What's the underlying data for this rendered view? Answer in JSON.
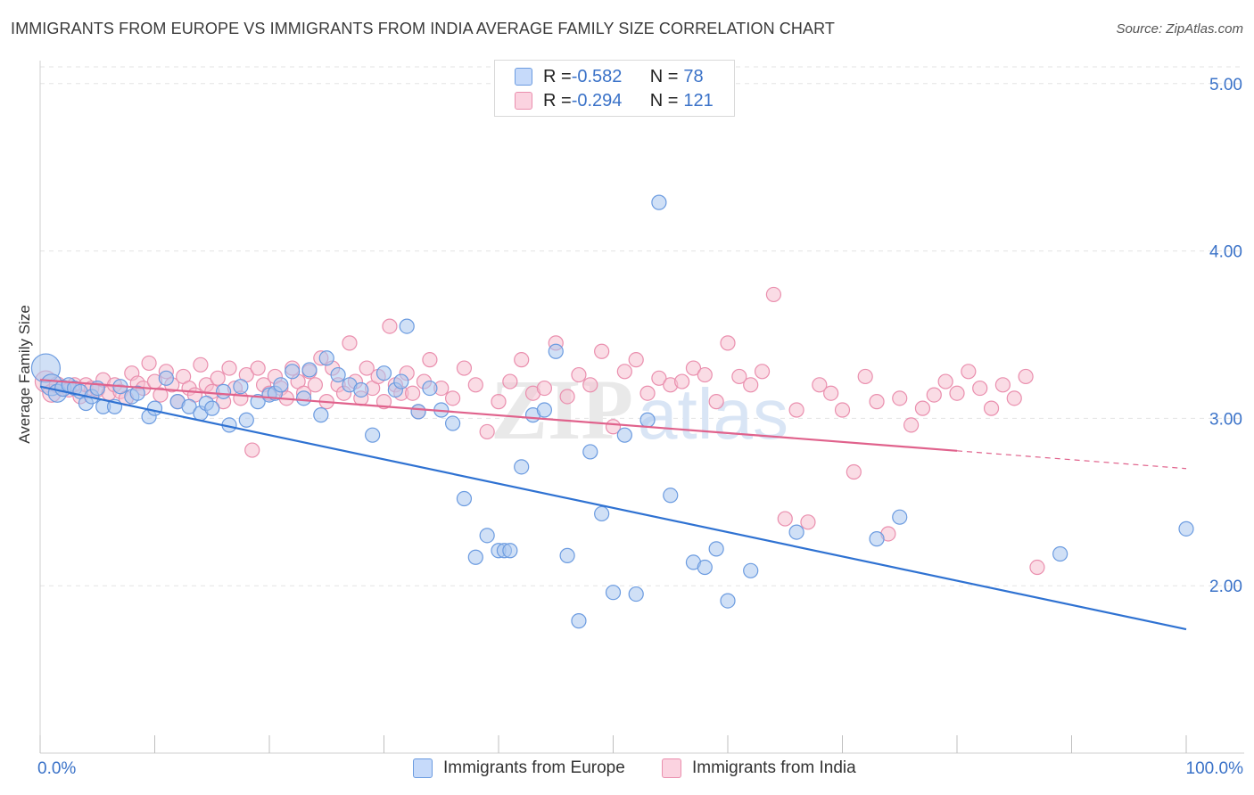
{
  "header": {
    "title": "IMMIGRANTS FROM EUROPE VS IMMIGRANTS FROM INDIA AVERAGE FAMILY SIZE CORRELATION CHART",
    "source": "Source: ZipAtlas.com"
  },
  "legend_top": {
    "europe": {
      "r_label": "R = ",
      "r_value": "-0.582",
      "n_label": "N = ",
      "n_value": "78"
    },
    "india": {
      "r_label": "R = ",
      "r_value": "-0.294",
      "n_label": "N = ",
      "n_value": "121"
    }
  },
  "watermark": {
    "zip": "ZIP",
    "atlas": "atlas"
  },
  "colors": {
    "europe_fill": "#a9c7ef",
    "europe_stroke": "#6b9be0",
    "europe_line": "#2f72d2",
    "india_fill": "#f6bfd0",
    "india_stroke": "#ea8fae",
    "india_line": "#e0628c",
    "axis_text": "#3a72c8",
    "grid": "#e3e3e3"
  },
  "chart_data": {
    "type": "scatter",
    "title": "IMMIGRANTS FROM EUROPE VS IMMIGRANTS FROM INDIA AVERAGE FAMILY SIZE CORRELATION CHART",
    "xlabel": "",
    "ylabel": "Average Family Size",
    "xlim": [
      0,
      100
    ],
    "ylim": [
      1.0,
      5.1
    ],
    "x_tick_labels": [
      "0.0%",
      "100.0%"
    ],
    "y_ticks": [
      2.0,
      3.0,
      4.0,
      5.0
    ],
    "y_tick_labels": [
      "2.00",
      "3.00",
      "4.00",
      "5.00"
    ],
    "grid": true,
    "legend_position": "bottom",
    "series": [
      {
        "name": "Immigrants from Europe",
        "r": -0.582,
        "n": 78,
        "trend": {
          "x": [
            0,
            100
          ],
          "y": [
            3.19,
            1.74
          ],
          "solid_to": 100
        },
        "points": [
          [
            0.5,
            3.3,
            16
          ],
          [
            1.0,
            3.2,
            12
          ],
          [
            1.5,
            3.15,
            10
          ],
          [
            2.0,
            3.18,
            9
          ],
          [
            2.5,
            3.2,
            8
          ],
          [
            3.0,
            3.18,
            8
          ],
          [
            3.5,
            3.16,
            8
          ],
          [
            4.0,
            3.09,
            8
          ],
          [
            4.5,
            3.13,
            8
          ],
          [
            5.0,
            3.18,
            8
          ],
          [
            5.5,
            3.07,
            8
          ],
          [
            6.5,
            3.07,
            8
          ],
          [
            7.0,
            3.19,
            8
          ],
          [
            8.0,
            3.13,
            8
          ],
          [
            8.5,
            3.15,
            8
          ],
          [
            9.5,
            3.01,
            8
          ],
          [
            10.0,
            3.06,
            8
          ],
          [
            11.0,
            3.24,
            8
          ],
          [
            12.0,
            3.1,
            8
          ],
          [
            13.0,
            3.07,
            8
          ],
          [
            14.0,
            3.03,
            8
          ],
          [
            14.5,
            3.09,
            8
          ],
          [
            15.0,
            3.06,
            8
          ],
          [
            16.0,
            3.16,
            8
          ],
          [
            16.5,
            2.96,
            8
          ],
          [
            17.5,
            3.19,
            8
          ],
          [
            18.0,
            2.99,
            8
          ],
          [
            19.0,
            3.1,
            8
          ],
          [
            20.0,
            3.14,
            8
          ],
          [
            20.5,
            3.15,
            8
          ],
          [
            21.0,
            3.2,
            8
          ],
          [
            22.0,
            3.28,
            8
          ],
          [
            23.0,
            3.12,
            8
          ],
          [
            23.5,
            3.29,
            8
          ],
          [
            24.5,
            3.02,
            8
          ],
          [
            25.0,
            3.36,
            8
          ],
          [
            26.0,
            3.26,
            8
          ],
          [
            27.0,
            3.2,
            8
          ],
          [
            28.0,
            3.17,
            8
          ],
          [
            29.0,
            2.9,
            8
          ],
          [
            30.0,
            3.27,
            8
          ],
          [
            31.0,
            3.17,
            8
          ],
          [
            31.5,
            3.22,
            8
          ],
          [
            32.0,
            3.55,
            8
          ],
          [
            33.0,
            3.04,
            8
          ],
          [
            34.0,
            3.18,
            8
          ],
          [
            35.0,
            3.05,
            8
          ],
          [
            36.0,
            2.97,
            8
          ],
          [
            37.0,
            2.52,
            8
          ],
          [
            38.0,
            2.17,
            8
          ],
          [
            39.0,
            2.3,
            8
          ],
          [
            40.0,
            2.21,
            8
          ],
          [
            40.5,
            2.21,
            8
          ],
          [
            41.0,
            2.21,
            8
          ],
          [
            42.0,
            2.71,
            8
          ],
          [
            43.0,
            3.02,
            8
          ],
          [
            44.0,
            3.05,
            8
          ],
          [
            45.0,
            3.4,
            8
          ],
          [
            46.0,
            2.18,
            8
          ],
          [
            47.0,
            1.79,
            8
          ],
          [
            48.0,
            2.8,
            8
          ],
          [
            49.0,
            2.43,
            8
          ],
          [
            50.0,
            1.96,
            8
          ],
          [
            51.0,
            2.9,
            8
          ],
          [
            52.0,
            1.95,
            8
          ],
          [
            53.0,
            2.99,
            8
          ],
          [
            54.0,
            4.29,
            8
          ],
          [
            55.0,
            2.54,
            8
          ],
          [
            57.0,
            2.14,
            8
          ],
          [
            58.0,
            2.11,
            8
          ],
          [
            59.0,
            2.22,
            8
          ],
          [
            60.0,
            1.91,
            8
          ],
          [
            62.0,
            2.09,
            8
          ],
          [
            66.0,
            2.32,
            8
          ],
          [
            73.0,
            2.28,
            8
          ],
          [
            75.0,
            2.41,
            8
          ],
          [
            89.0,
            2.19,
            8
          ],
          [
            100.0,
            2.34,
            8
          ]
        ]
      },
      {
        "name": "Immigrants from India",
        "r": -0.294,
        "n": 121,
        "trend": {
          "x": [
            0,
            100
          ],
          "y": [
            3.23,
            2.7
          ],
          "solid_to": 80
        },
        "points": [
          [
            0.5,
            3.22,
            12
          ],
          [
            1.0,
            3.15,
            10
          ],
          [
            1.5,
            3.2,
            9
          ],
          [
            2.0,
            3.18,
            9
          ],
          [
            2.5,
            3.17,
            8
          ],
          [
            3.0,
            3.2,
            8
          ],
          [
            3.5,
            3.13,
            8
          ],
          [
            4.0,
            3.2,
            8
          ],
          [
            4.5,
            3.18,
            8
          ],
          [
            5.0,
            3.17,
            8
          ],
          [
            5.5,
            3.23,
            8
          ],
          [
            6.0,
            3.15,
            8
          ],
          [
            6.5,
            3.2,
            8
          ],
          [
            7.0,
            3.16,
            8
          ],
          [
            7.5,
            3.12,
            8
          ],
          [
            8.0,
            3.27,
            8
          ],
          [
            8.5,
            3.21,
            8
          ],
          [
            9.0,
            3.18,
            8
          ],
          [
            9.5,
            3.33,
            8
          ],
          [
            10.0,
            3.22,
            8
          ],
          [
            10.5,
            3.14,
            8
          ],
          [
            11.0,
            3.28,
            8
          ],
          [
            11.5,
            3.2,
            8
          ],
          [
            12.0,
            3.1,
            8
          ],
          [
            12.5,
            3.25,
            8
          ],
          [
            13.0,
            3.18,
            8
          ],
          [
            13.5,
            3.14,
            8
          ],
          [
            14.0,
            3.32,
            8
          ],
          [
            14.5,
            3.2,
            8
          ],
          [
            15.0,
            3.16,
            8
          ],
          [
            15.5,
            3.24,
            8
          ],
          [
            16.0,
            3.1,
            8
          ],
          [
            16.5,
            3.3,
            8
          ],
          [
            17.0,
            3.18,
            8
          ],
          [
            17.5,
            3.12,
            8
          ],
          [
            18.0,
            3.26,
            8
          ],
          [
            18.5,
            2.81,
            8
          ],
          [
            19.0,
            3.3,
            8
          ],
          [
            19.5,
            3.2,
            8
          ],
          [
            20.0,
            3.15,
            8
          ],
          [
            20.5,
            3.25,
            8
          ],
          [
            21.0,
            3.18,
            8
          ],
          [
            21.5,
            3.12,
            8
          ],
          [
            22.0,
            3.3,
            8
          ],
          [
            22.5,
            3.22,
            8
          ],
          [
            23.0,
            3.15,
            8
          ],
          [
            23.5,
            3.28,
            8
          ],
          [
            24.0,
            3.2,
            8
          ],
          [
            24.5,
            3.36,
            8
          ],
          [
            25.0,
            3.1,
            8
          ],
          [
            25.5,
            3.3,
            8
          ],
          [
            26.0,
            3.2,
            8
          ],
          [
            26.5,
            3.15,
            8
          ],
          [
            27.0,
            3.45,
            8
          ],
          [
            27.5,
            3.22,
            8
          ],
          [
            28.0,
            3.12,
            8
          ],
          [
            28.5,
            3.3,
            8
          ],
          [
            29.0,
            3.18,
            8
          ],
          [
            29.5,
            3.25,
            8
          ],
          [
            30.0,
            3.1,
            8
          ],
          [
            30.5,
            3.55,
            8
          ],
          [
            31.0,
            3.2,
            8
          ],
          [
            31.5,
            3.15,
            8
          ],
          [
            32.0,
            3.27,
            8
          ],
          [
            32.5,
            3.15,
            8
          ],
          [
            33.0,
            3.04,
            8
          ],
          [
            33.5,
            3.22,
            8
          ],
          [
            34.0,
            3.35,
            8
          ],
          [
            35.0,
            3.18,
            8
          ],
          [
            36.0,
            3.12,
            8
          ],
          [
            37.0,
            3.3,
            8
          ],
          [
            38.0,
            3.2,
            8
          ],
          [
            39.0,
            2.92,
            8
          ],
          [
            40.0,
            3.1,
            8
          ],
          [
            41.0,
            3.22,
            8
          ],
          [
            42.0,
            3.35,
            8
          ],
          [
            43.0,
            3.15,
            8
          ],
          [
            44.0,
            3.18,
            8
          ],
          [
            45.0,
            3.45,
            8
          ],
          [
            46.0,
            3.13,
            8
          ],
          [
            47.0,
            3.26,
            8
          ],
          [
            48.0,
            3.2,
            8
          ],
          [
            49.0,
            3.4,
            8
          ],
          [
            50.0,
            2.95,
            8
          ],
          [
            51.0,
            3.28,
            8
          ],
          [
            52.0,
            3.35,
            8
          ],
          [
            53.0,
            3.15,
            8
          ],
          [
            54.0,
            3.24,
            8
          ],
          [
            55.0,
            3.2,
            8
          ],
          [
            56.0,
            3.22,
            8
          ],
          [
            57.0,
            3.3,
            8
          ],
          [
            58.0,
            3.26,
            8
          ],
          [
            59.0,
            3.1,
            8
          ],
          [
            60.0,
            3.45,
            8
          ],
          [
            61.0,
            3.25,
            8
          ],
          [
            62.0,
            3.2,
            8
          ],
          [
            63.0,
            3.28,
            8
          ],
          [
            64.0,
            3.74,
            8
          ],
          [
            65.0,
            2.4,
            8
          ],
          [
            66.0,
            3.05,
            8
          ],
          [
            67.0,
            2.38,
            8
          ],
          [
            68.0,
            3.2,
            8
          ],
          [
            69.0,
            3.15,
            8
          ],
          [
            70.0,
            3.05,
            8
          ],
          [
            71.0,
            2.68,
            8
          ],
          [
            72.0,
            3.25,
            8
          ],
          [
            73.0,
            3.1,
            8
          ],
          [
            74.0,
            2.31,
            8
          ],
          [
            75.0,
            3.12,
            8
          ],
          [
            76.0,
            2.96,
            8
          ],
          [
            77.0,
            3.06,
            8
          ],
          [
            78.0,
            3.14,
            8
          ],
          [
            79.0,
            3.22,
            8
          ],
          [
            80.0,
            3.15,
            8
          ],
          [
            81.0,
            3.28,
            8
          ],
          [
            82.0,
            3.18,
            8
          ],
          [
            83.0,
            3.06,
            8
          ],
          [
            84.0,
            3.2,
            8
          ],
          [
            85.0,
            3.12,
            8
          ],
          [
            86.0,
            3.25,
            8
          ],
          [
            87.0,
            2.11,
            8
          ]
        ]
      }
    ]
  },
  "bottom_legend": {
    "europe_label": "Immigrants from Europe",
    "india_label": "Immigrants from India"
  },
  "axes": {
    "x_min_label": "0.0%",
    "x_max_label": "100.0%",
    "y_axis_label": "Average Family Size"
  }
}
